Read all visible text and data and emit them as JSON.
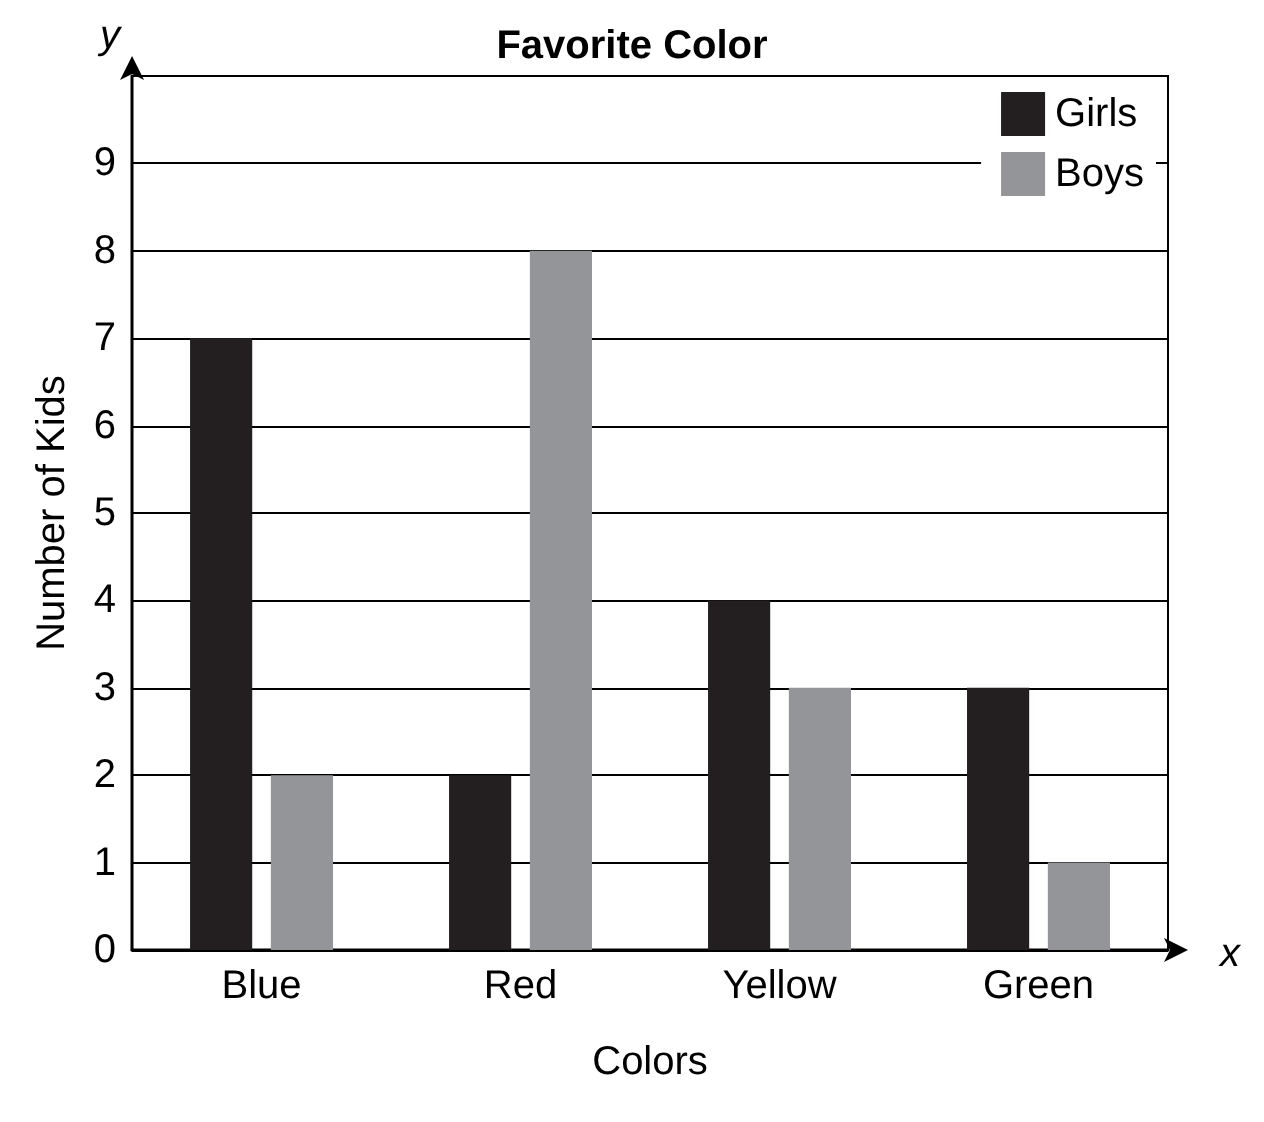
{
  "chart_data": {
    "type": "bar",
    "title": "Favorite Color",
    "xlabel": "Colors",
    "ylabel": "Number of Kids",
    "annotations": [
      "y",
      "x"
    ],
    "categories": [
      "Blue",
      "Red",
      "Yellow",
      "Green"
    ],
    "series": [
      {
        "name": "Girls",
        "color": "#231f20",
        "values": [
          7,
          2,
          4,
          3
        ]
      },
      {
        "name": "Boys",
        "color": "#939598",
        "values": [
          2,
          8,
          3,
          1
        ]
      }
    ],
    "ylim": [
      0,
      10
    ],
    "yticks": [
      0,
      1,
      2,
      3,
      4,
      5,
      6,
      7,
      8,
      9
    ],
    "grid": "y",
    "legend": "top right"
  }
}
